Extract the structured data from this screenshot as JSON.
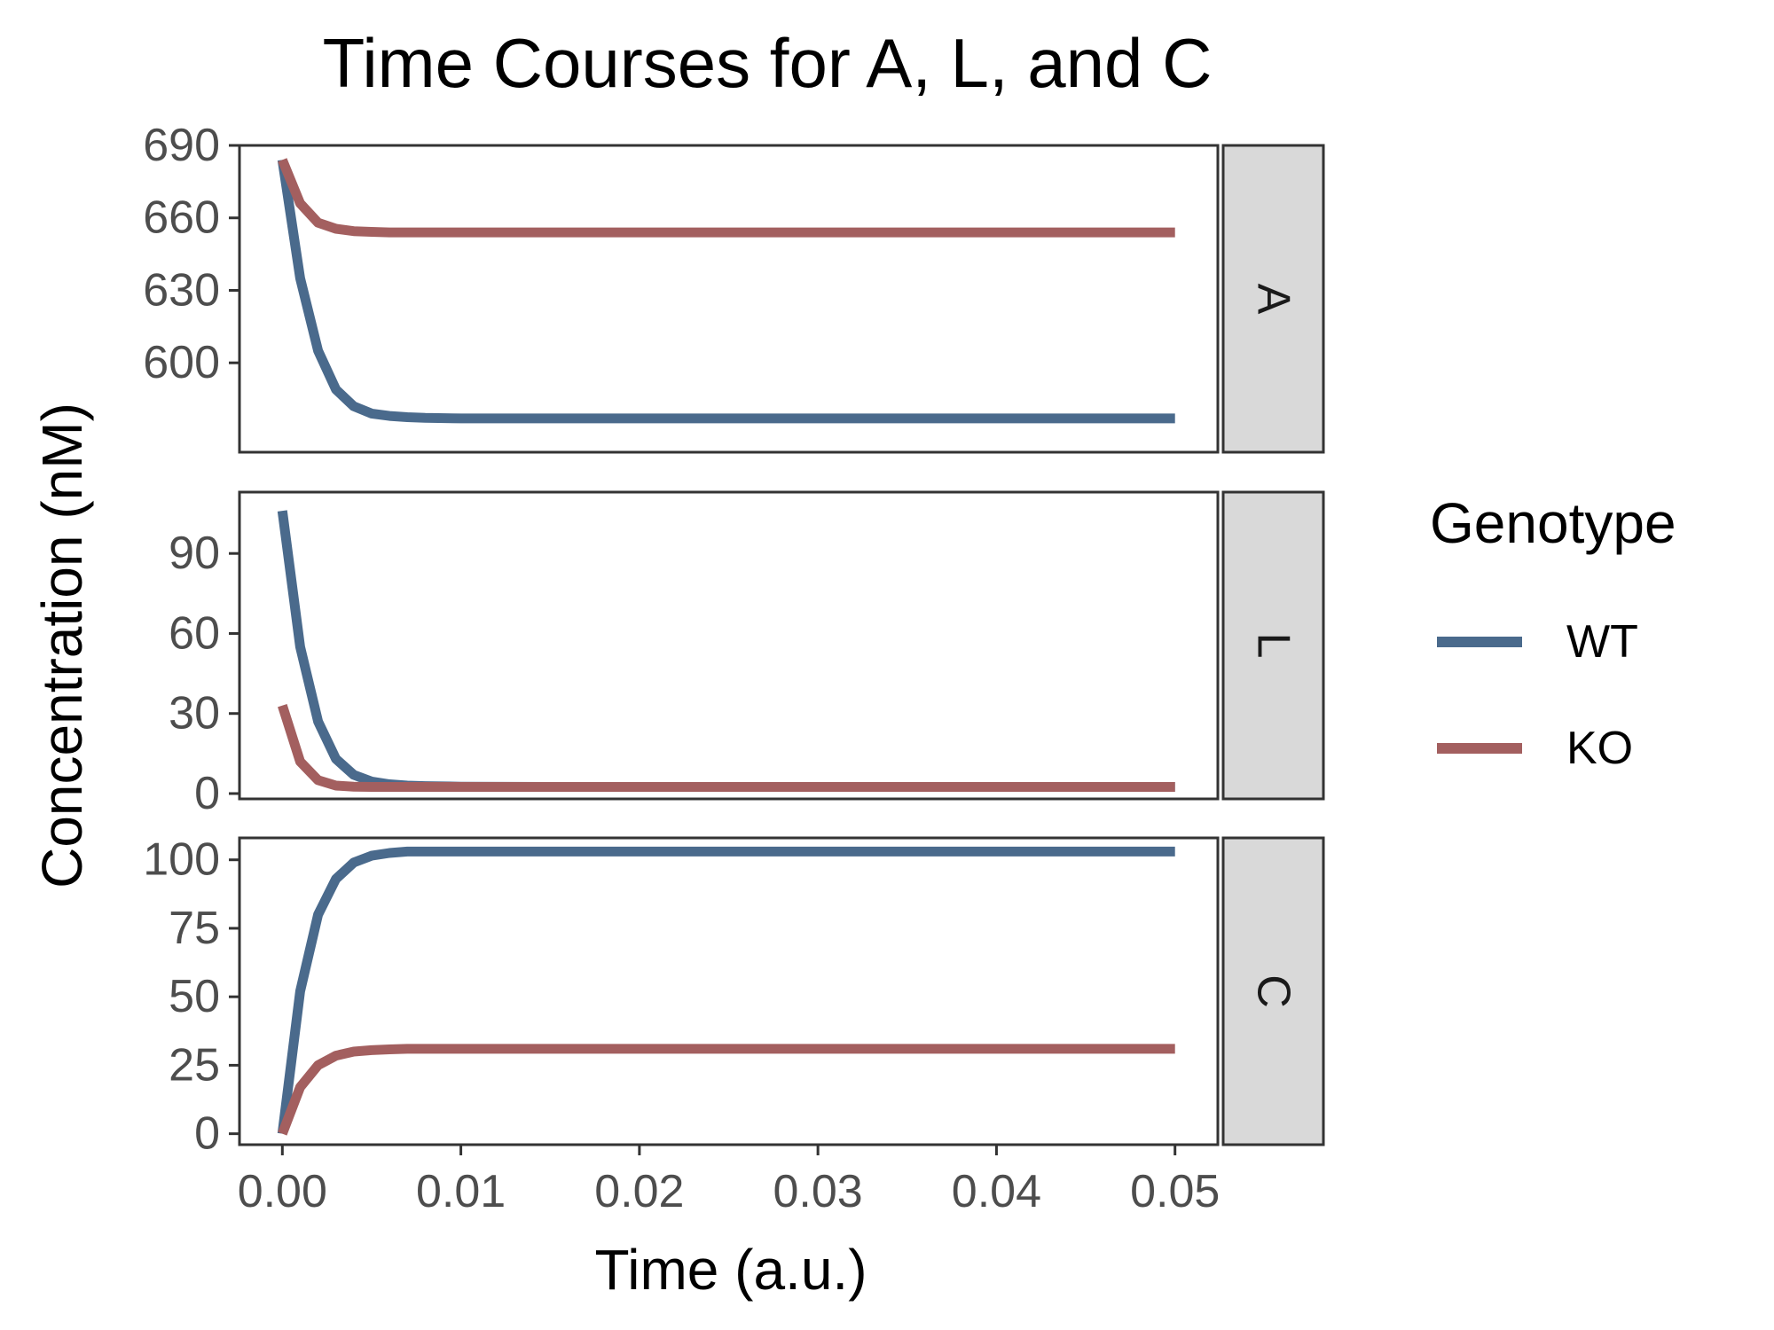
{
  "chart_data": {
    "type": "line",
    "title": "Time Courses for A, L, and C",
    "xlabel": "Time (a.u.)",
    "ylabel": "Concentration (nM)",
    "x_ticks": [
      "0.00",
      "0.01",
      "0.02",
      "0.03",
      "0.04",
      "0.05"
    ],
    "x_tick_values": [
      0,
      0.01,
      0.02,
      0.03,
      0.04,
      0.05
    ],
    "xlim": [
      -0.0024,
      0.0524
    ],
    "grid": false,
    "legend": {
      "title": "Genotype",
      "position": "right",
      "entries": [
        {
          "name": "WT",
          "color": "#4a6a8c"
        },
        {
          "name": "KO",
          "color": "#a35f5f"
        }
      ]
    },
    "x": [
      0,
      0.001,
      0.002,
      0.003,
      0.004,
      0.005,
      0.006,
      0.007,
      0.008,
      0.01,
      0.015,
      0.02,
      0.03,
      0.04,
      0.05
    ],
    "facets": [
      {
        "label": "A",
        "ylim": [
          563,
          690
        ],
        "y_ticks": [
          "600",
          "630",
          "660",
          "690"
        ],
        "y_tick_values": [
          600,
          630,
          660,
          690
        ],
        "series": [
          {
            "name": "WT",
            "values": [
              684,
              635,
              605,
              589,
              582,
              579,
              578,
              577.5,
              577.2,
              577,
              577,
              577,
              577,
              577,
              577
            ]
          },
          {
            "name": "KO",
            "values": [
              684,
              666,
              658,
              655.5,
              654.5,
              654.2,
              654,
              654,
              654,
              654,
              654,
              654,
              654,
              654,
              654
            ]
          }
        ]
      },
      {
        "label": "L",
        "ylim": [
          -2,
          113
        ],
        "y_ticks": [
          "0",
          "30",
          "60",
          "90"
        ],
        "y_tick_values": [
          0,
          30,
          60,
          90
        ],
        "series": [
          {
            "name": "WT",
            "values": [
              106,
              55,
              27,
              13,
              7,
              4.5,
              3.5,
              3,
              2.8,
              2.6,
              2.5,
              2.5,
              2.5,
              2.5,
              2.5
            ]
          },
          {
            "name": "KO",
            "values": [
              33,
              12,
              5,
              3,
              2.6,
              2.5,
              2.5,
              2.5,
              2.5,
              2.5,
              2.5,
              2.5,
              2.5,
              2.5,
              2.5
            ]
          }
        ]
      },
      {
        "label": "C",
        "ylim": [
          -4,
          108
        ],
        "y_ticks": [
          "0",
          "25",
          "50",
          "75",
          "100"
        ],
        "y_tick_values": [
          0,
          25,
          50,
          75,
          100
        ],
        "series": [
          {
            "name": "WT",
            "values": [
              0,
              52,
              80,
              93,
              99,
              101.5,
              102.5,
              103,
              103,
              103,
              103,
              103,
              103,
              103,
              103
            ]
          },
          {
            "name": "KO",
            "values": [
              0,
              17,
              25,
              28.5,
              30,
              30.5,
              30.8,
              31,
              31,
              31,
              31,
              31,
              31,
              31,
              31
            ]
          }
        ]
      }
    ]
  }
}
